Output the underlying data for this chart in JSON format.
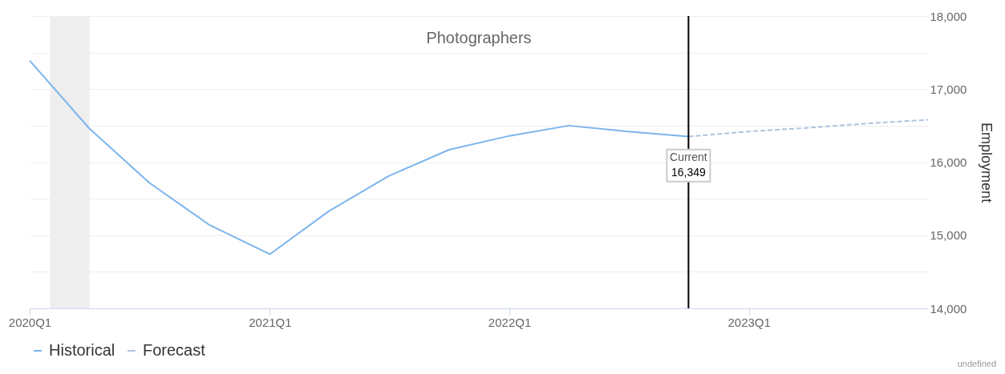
{
  "chart_data": {
    "type": "line",
    "title": "Photographers",
    "ylabel": "Employment",
    "xlim": [
      "2020-01",
      "2023-10"
    ],
    "xticks": [
      {
        "value": "2020-01",
        "label": "2020Q1"
      },
      {
        "value": "2021-01",
        "label": "2021Q1"
      },
      {
        "value": "2022-01",
        "label": "2022Q1"
      },
      {
        "value": "2023-01",
        "label": "2023Q1"
      }
    ],
    "ylim": [
      14000,
      18000
    ],
    "yticks": [
      {
        "value": 14000,
        "label": "14,000"
      },
      {
        "value": 14500,
        "label": null
      },
      {
        "value": 15000,
        "label": "15,000"
      },
      {
        "value": 15500,
        "label": null
      },
      {
        "value": 16000,
        "label": "16,000"
      },
      {
        "value": 16500,
        "label": null
      },
      {
        "value": 17000,
        "label": "17,000"
      },
      {
        "value": 17500,
        "label": null
      },
      {
        "value": 18000,
        "label": "18,000"
      }
    ],
    "series": [
      {
        "name": "Historical",
        "color": "#7cb5ec",
        "line_style": "solid",
        "x": [
          "2020-01",
          "2020-04",
          "2020-07",
          "2020-10",
          "2021-01",
          "2021-04",
          "2021-07",
          "2021-10",
          "2022-01",
          "2022-04",
          "2022-07",
          "2022-10"
        ],
        "values": [
          17390,
          16460,
          15720,
          15140,
          14740,
          15330,
          15810,
          16170,
          16360,
          16500,
          16420,
          16350
        ]
      },
      {
        "name": "Forecast",
        "color": "#b0c4de",
        "line_style": "dashed",
        "x": [
          "2022-10",
          "2023-01",
          "2023-04",
          "2023-07",
          "2023-10"
        ],
        "values": [
          16350,
          16420,
          16470,
          16530,
          16580
        ]
      }
    ],
    "bands": [
      {
        "axis": "x",
        "from": "2020-02",
        "to": "2020-04",
        "color": "#eeeeee"
      }
    ],
    "ref_lines": [
      {
        "axis": "x",
        "value": "2022-10",
        "label": "Current",
        "color": "#000000"
      }
    ],
    "annotations": [
      {
        "text": "16,349",
        "x": "2022-10",
        "y": 16349
      },
      "undefined"
    ],
    "grid": "y",
    "legend": "bottom",
    "marker": "none"
  }
}
